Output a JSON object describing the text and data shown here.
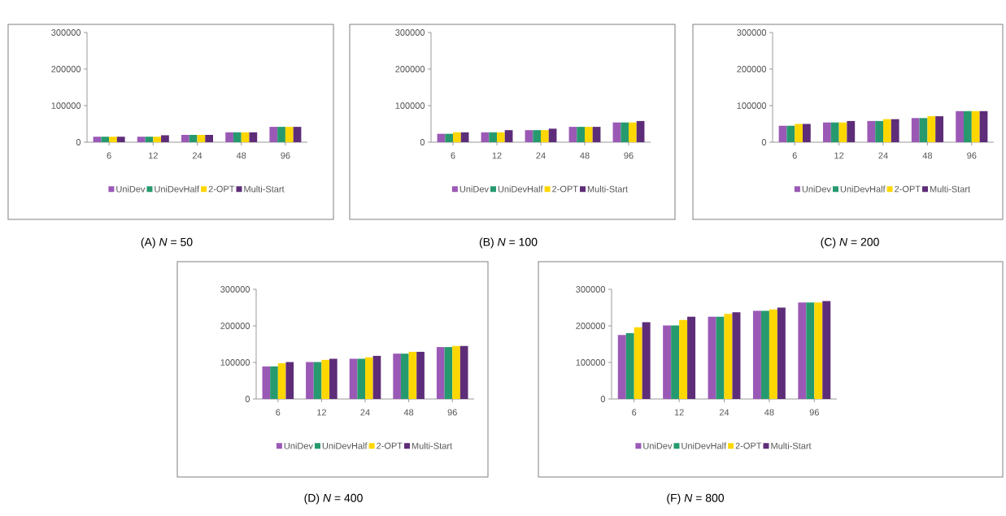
{
  "chart_data": [
    {
      "type": "bar",
      "title": "(A)  *N* = 50",
      "categories": [
        "6",
        "12",
        "24",
        "48",
        "96"
      ],
      "ylim": [
        0,
        300000
      ],
      "yticks": [
        0,
        100000,
        200000,
        300000
      ],
      "legend": "bottom",
      "series": [
        {
          "name": "UniDev",
          "color": "#9b59b6",
          "values": [
            15000,
            15000,
            20000,
            27000,
            42000
          ]
        },
        {
          "name": "UniDevHalf",
          "color": "#269a6e",
          "values": [
            15000,
            15000,
            20000,
            27000,
            42000
          ]
        },
        {
          "name": "2-OPT",
          "color": "#ffd700",
          "values": [
            15000,
            15000,
            20000,
            27000,
            42000
          ]
        },
        {
          "name": "Multi-Start",
          "color": "#5e2d79",
          "values": [
            15000,
            19000,
            20000,
            27000,
            42000
          ]
        }
      ]
    },
    {
      "type": "bar",
      "title": "(B)  *N* = 100",
      "categories": [
        "6",
        "12",
        "24",
        "48",
        "96"
      ],
      "ylim": [
        0,
        300000
      ],
      "yticks": [
        0,
        100000,
        200000,
        300000
      ],
      "legend": "bottom",
      "series": [
        {
          "name": "UniDev",
          "color": "#9b59b6",
          "values": [
            23000,
            27000,
            33000,
            42000,
            54000
          ]
        },
        {
          "name": "UniDevHalf",
          "color": "#269a6e",
          "values": [
            23000,
            27000,
            33000,
            42000,
            54000
          ]
        },
        {
          "name": "2-OPT",
          "color": "#ffd700",
          "values": [
            27000,
            27000,
            33000,
            42000,
            54000
          ]
        },
        {
          "name": "Multi-Start",
          "color": "#5e2d79",
          "values": [
            27000,
            33000,
            37000,
            42000,
            58000
          ]
        }
      ]
    },
    {
      "type": "bar",
      "title": "(C)  *N* = 200",
      "categories": [
        "6",
        "12",
        "24",
        "48",
        "96"
      ],
      "ylim": [
        0,
        300000
      ],
      "yticks": [
        0,
        100000,
        200000,
        300000
      ],
      "legend": "bottom",
      "series": [
        {
          "name": "UniDev",
          "color": "#9b59b6",
          "values": [
            45000,
            54000,
            58000,
            66000,
            85000
          ]
        },
        {
          "name": "UniDevHalf",
          "color": "#269a6e",
          "values": [
            45000,
            54000,
            58000,
            66000,
            85000
          ]
        },
        {
          "name": "2-OPT",
          "color": "#ffd700",
          "values": [
            50000,
            54000,
            63000,
            71000,
            85000
          ]
        },
        {
          "name": "Multi-Start",
          "color": "#5e2d79",
          "values": [
            50000,
            58000,
            63000,
            71000,
            85000
          ]
        }
      ]
    },
    {
      "type": "bar",
      "title": "(D)  *N* = 400",
      "categories": [
        "6",
        "12",
        "24",
        "48",
        "96"
      ],
      "ylim": [
        0,
        300000
      ],
      "yticks": [
        0,
        100000,
        200000,
        300000
      ],
      "legend": "bottom",
      "series": [
        {
          "name": "UniDev",
          "color": "#9b59b6",
          "values": [
            89000,
            101000,
            110000,
            124000,
            142000
          ]
        },
        {
          "name": "UniDevHalf",
          "color": "#269a6e",
          "values": [
            89000,
            101000,
            110000,
            124000,
            142000
          ]
        },
        {
          "name": "2-OPT",
          "color": "#ffd700",
          "values": [
            98000,
            107000,
            114000,
            129000,
            145000
          ]
        },
        {
          "name": "Multi-Start",
          "color": "#5e2d79",
          "values": [
            101000,
            110000,
            118000,
            129000,
            145000
          ]
        }
      ]
    },
    {
      "type": "bar",
      "title": "(F)  *N* = 800",
      "categories": [
        "6",
        "12",
        "24",
        "48",
        "96"
      ],
      "ylim": [
        0,
        300000
      ],
      "yticks": [
        0,
        100000,
        200000,
        300000
      ],
      "legend": "bottom",
      "series": [
        {
          "name": "UniDev",
          "color": "#9b59b6",
          "values": [
            175000,
            201000,
            225000,
            241000,
            264000
          ]
        },
        {
          "name": "UniDevHalf",
          "color": "#269a6e",
          "values": [
            180000,
            201000,
            225000,
            241000,
            264000
          ]
        },
        {
          "name": "2-OPT",
          "color": "#ffd700",
          "values": [
            196000,
            216000,
            233000,
            245000,
            264000
          ]
        },
        {
          "name": "Multi-Start",
          "color": "#5e2d79",
          "values": [
            210000,
            225000,
            237000,
            250000,
            268000
          ]
        }
      ]
    }
  ]
}
